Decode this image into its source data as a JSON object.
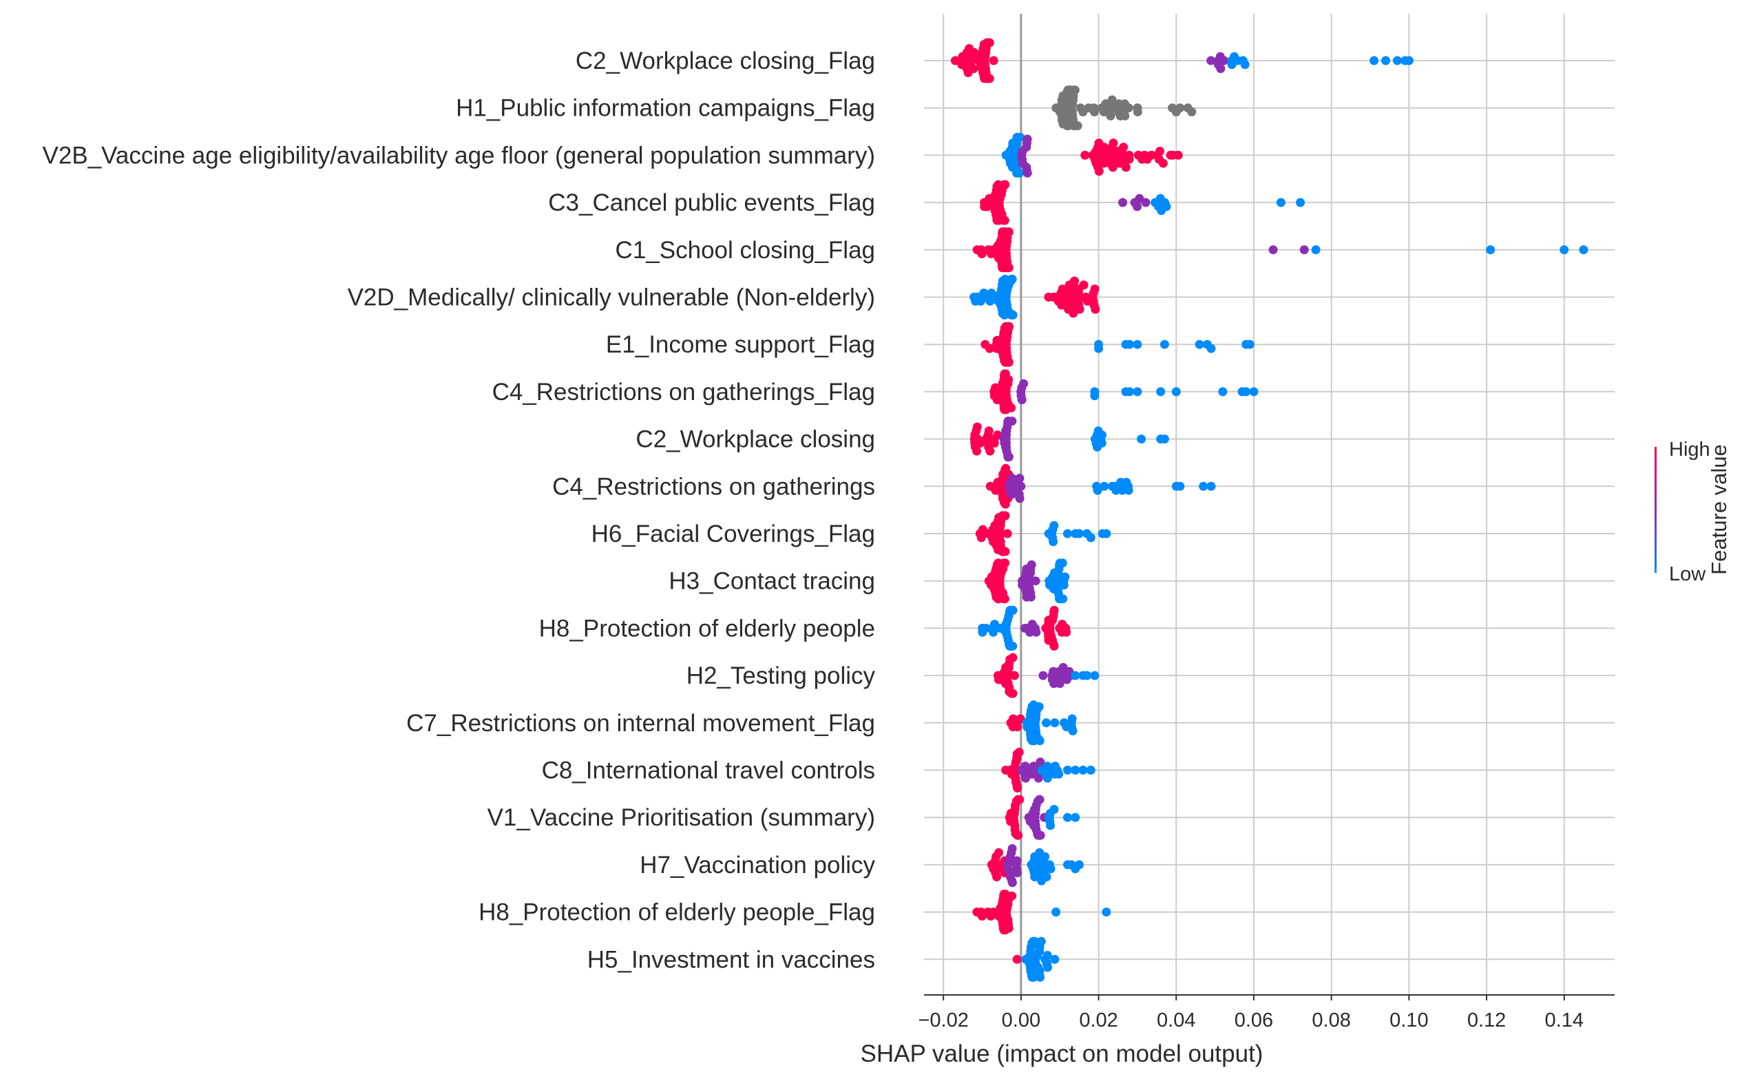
{
  "chart_data": {
    "type": "scatter",
    "subtype": "shap-beeswarm-summary",
    "title": "",
    "xlabel": "SHAP value (impact on model output)",
    "ylabel": "",
    "xlim": [
      -0.025,
      0.153
    ],
    "x_ticks": [
      -0.02,
      0.0,
      0.02,
      0.04,
      0.06,
      0.08,
      0.1,
      0.12,
      0.14
    ],
    "x_tick_labels": [
      "−0.02",
      "0.00",
      "0.02",
      "0.04",
      "0.06",
      "0.08",
      "0.10",
      "0.12",
      "0.14"
    ],
    "grid": true,
    "zero_line": true,
    "legend": {
      "type": "colorbar",
      "title": "Feature value",
      "high_label": "High",
      "low_label": "Low",
      "position": "right"
    },
    "colors": {
      "high": "#ff0052",
      "mid": "#8b2eb4",
      "low": "#008bfb",
      "missing": "#777777",
      "grid": "#cccccc",
      "zero_line": "#999999"
    },
    "features": [
      {
        "name": "C2_Workplace closing_Flag",
        "groups": [
          {
            "x0": -0.017,
            "x1": -0.007,
            "core": [
              -0.01,
              -0.008
            ],
            "n": 48,
            "color": "high"
          },
          {
            "x0": 0.048,
            "x1": 0.053,
            "n": 6,
            "color": "mid"
          },
          {
            "x0": 0.054,
            "x1": 0.058,
            "n": 6,
            "color": "low"
          },
          {
            "points": [
              0.091,
              0.094,
              0.097,
              0.099,
              0.1
            ],
            "color": "low"
          }
        ]
      },
      {
        "name": "H1_Public information campaigns_Flag",
        "groups": [
          {
            "x0": 0.008,
            "x1": 0.016,
            "core": [
              0.01,
              0.014
            ],
            "n": 40,
            "color": "missing"
          },
          {
            "x0": 0.017,
            "x1": 0.031,
            "n": 22,
            "color": "missing"
          },
          {
            "points": [
              0.039,
              0.04,
              0.041,
              0.043,
              0.044
            ],
            "color": "missing"
          }
        ]
      },
      {
        "name": "V2B_Vaccine age eligibility/availability age floor (general population summary)",
        "groups": [
          {
            "x0": -0.004,
            "x1": 0.0,
            "core": [
              -0.003,
              -0.001
            ],
            "n": 22,
            "color": "low"
          },
          {
            "x0": 0.0,
            "x1": 0.002,
            "n": 10,
            "color": "mid"
          },
          {
            "x0": 0.015,
            "x1": 0.041,
            "core": [
              0.019,
              0.026
            ],
            "n": 45,
            "color": "high"
          }
        ]
      },
      {
        "name": "C3_Cancel public events_Flag",
        "groups": [
          {
            "x0": -0.01,
            "x1": -0.003,
            "core": [
              -0.007,
              -0.004
            ],
            "n": 30,
            "color": "high"
          },
          {
            "x0": 0.026,
            "x1": 0.033,
            "n": 6,
            "color": "mid"
          },
          {
            "x0": 0.034,
            "x1": 0.038,
            "n": 7,
            "color": "low"
          },
          {
            "points": [
              0.067,
              0.072
            ],
            "color": "low"
          }
        ]
      },
      {
        "name": "C1_School closing_Flag",
        "groups": [
          {
            "x0": -0.013,
            "x1": -0.003,
            "core": [
              -0.006,
              -0.003
            ],
            "n": 40,
            "color": "high"
          },
          {
            "points": [
              0.065,
              0.073
            ],
            "color": "mid"
          },
          {
            "points": [
              0.076,
              0.121,
              0.14,
              0.145
            ],
            "color": "low"
          }
        ]
      },
      {
        "name": "V2D_Medically/ clinically vulnerable (Non-elderly)",
        "groups": [
          {
            "x0": -0.013,
            "x1": -0.001,
            "core": [
              -0.006,
              -0.002
            ],
            "n": 35,
            "color": "low"
          },
          {
            "x0": 0.007,
            "x1": 0.02,
            "core": [
              0.01,
              0.015
            ],
            "n": 38,
            "color": "high"
          }
        ]
      },
      {
        "name": "E1_Income support_Flag",
        "groups": [
          {
            "x0": -0.01,
            "x1": -0.003,
            "core": [
              -0.005,
              -0.003
            ],
            "n": 30,
            "color": "high"
          },
          {
            "points": [
              0.02,
              0.02,
              0.027,
              0.028,
              0.03,
              0.037,
              0.046,
              0.048,
              0.049,
              0.058,
              0.059
            ],
            "color": "low"
          }
        ]
      },
      {
        "name": "C4_Restrictions on gatherings_Flag",
        "groups": [
          {
            "x0": -0.007,
            "x1": -0.002,
            "core": [
              -0.005,
              -0.003
            ],
            "n": 28,
            "color": "high"
          },
          {
            "x0": -0.002,
            "x1": 0.001,
            "n": 5,
            "color": "mid"
          },
          {
            "points": [
              0.019,
              0.019,
              0.027,
              0.028,
              0.03,
              0.036,
              0.04,
              0.052,
              0.057,
              0.058,
              0.06
            ],
            "color": "low"
          }
        ]
      },
      {
        "name": "C2_Workplace closing",
        "groups": [
          {
            "x0": -0.012,
            "x1": -0.005,
            "n": 18,
            "color": "high"
          },
          {
            "x0": -0.005,
            "x1": -0.002,
            "core": [
              -0.004,
              -0.003
            ],
            "n": 22,
            "color": "mid"
          },
          {
            "x0": 0.019,
            "x1": 0.021,
            "n": 8,
            "color": "low"
          },
          {
            "points": [
              0.031,
              0.036,
              0.037
            ],
            "color": "low"
          }
        ]
      },
      {
        "name": "C4_Restrictions on gatherings",
        "groups": [
          {
            "x0": -0.008,
            "x1": -0.003,
            "core": [
              -0.005,
              -0.003
            ],
            "n": 22,
            "color": "high"
          },
          {
            "x0": -0.003,
            "x1": 0.0,
            "n": 12,
            "color": "mid"
          },
          {
            "x0": 0.019,
            "x1": 0.028,
            "n": 12,
            "color": "low"
          },
          {
            "points": [
              0.04,
              0.041,
              0.047,
              0.049
            ],
            "color": "low"
          }
        ]
      },
      {
        "name": "H6_Facial Coverings_Flag",
        "groups": [
          {
            "x0": -0.011,
            "x1": -0.003,
            "core": [
              -0.006,
              -0.004
            ],
            "n": 38,
            "color": "high"
          },
          {
            "x0": 0.007,
            "x1": 0.009,
            "n": 6,
            "color": "low"
          },
          {
            "points": [
              0.012,
              0.014,
              0.015,
              0.017,
              0.018,
              0.021,
              0.022
            ],
            "color": "low"
          }
        ]
      },
      {
        "name": "H3_Contact tracing",
        "groups": [
          {
            "x0": -0.01,
            "x1": -0.003,
            "core": [
              -0.007,
              -0.004
            ],
            "n": 32,
            "color": "high"
          },
          {
            "x0": 0.0,
            "x1": 0.004,
            "core": [
              0.001,
              0.003
            ],
            "n": 18,
            "color": "mid"
          },
          {
            "x0": 0.007,
            "x1": 0.012,
            "core": [
              0.009,
              0.011
            ],
            "n": 22,
            "color": "low"
          }
        ]
      },
      {
        "name": "H8_Protection of elderly people",
        "groups": [
          {
            "x0": -0.01,
            "x1": -0.001,
            "core": [
              -0.004,
              -0.002
            ],
            "n": 28,
            "color": "low"
          },
          {
            "x0": 0.001,
            "x1": 0.004,
            "n": 6,
            "color": "mid"
          },
          {
            "x0": 0.006,
            "x1": 0.012,
            "core": [
              0.007,
              0.009
            ],
            "n": 22,
            "color": "high"
          }
        ]
      },
      {
        "name": "H2_Testing policy",
        "groups": [
          {
            "x0": -0.006,
            "x1": -0.001,
            "core": [
              -0.004,
              -0.002
            ],
            "n": 20,
            "color": "high"
          },
          {
            "x0": 0.005,
            "x1": 0.013,
            "core": [
              0.008,
              0.01
            ],
            "n": 14,
            "color": "mid"
          },
          {
            "points": [
              0.014,
              0.016,
              0.017,
              0.019
            ],
            "color": "low"
          }
        ]
      },
      {
        "name": "C7_Restrictions on internal movement_Flag",
        "groups": [
          {
            "x0": -0.003,
            "x1": 0.0,
            "n": 6,
            "color": "high"
          },
          {
            "x0": 0.009,
            "x1": 0.001,
            "core": [
              0.002,
              0.005
            ],
            "n": 26,
            "color": "low"
          },
          {
            "x0": 0.011,
            "x1": 0.014,
            "n": 6,
            "color": "low"
          }
        ]
      },
      {
        "name": "C8_International travel controls",
        "groups": [
          {
            "x0": -0.004,
            "x1": 0.0,
            "core": [
              -0.002,
              -0.001
            ],
            "n": 14,
            "color": "high"
          },
          {
            "x0": 0.0,
            "x1": 0.005,
            "n": 12,
            "color": "mid"
          },
          {
            "x0": 0.005,
            "x1": 0.01,
            "n": 10,
            "color": "low"
          },
          {
            "points": [
              0.012,
              0.014,
              0.016,
              0.018
            ],
            "color": "low"
          }
        ]
      },
      {
        "name": "V1_Vaccine Prioritisation (summary)",
        "groups": [
          {
            "x0": -0.004,
            "x1": 0.0,
            "core": [
              -0.002,
              -0.001
            ],
            "n": 16,
            "color": "high"
          },
          {
            "x0": 0.002,
            "x1": 0.007,
            "core": [
              0.003,
              0.005
            ],
            "n": 20,
            "color": "mid"
          },
          {
            "x0": 0.007,
            "x1": 0.009,
            "n": 5,
            "color": "low"
          },
          {
            "points": [
              0.012,
              0.014
            ],
            "color": "low"
          }
        ]
      },
      {
        "name": "H7_Vaccination policy",
        "groups": [
          {
            "x0": -0.008,
            "x1": -0.004,
            "n": 12,
            "color": "high"
          },
          {
            "x0": -0.004,
            "x1": 0.0,
            "core": [
              -0.003,
              -0.001
            ],
            "n": 14,
            "color": "mid"
          },
          {
            "x0": 0.002,
            "x1": 0.008,
            "core": [
              0.003,
              0.006
            ],
            "n": 22,
            "color": "low"
          },
          {
            "points": [
              0.012,
              0.013,
              0.014,
              0.015
            ],
            "color": "low"
          }
        ]
      },
      {
        "name": "H8_Protection of elderly people_Flag",
        "groups": [
          {
            "x0": -0.012,
            "x1": -0.002,
            "core": [
              -0.005,
              -0.003
            ],
            "n": 32,
            "color": "high"
          },
          {
            "points": [
              0.009,
              0.022
            ],
            "color": "low"
          }
        ]
      },
      {
        "name": "H5_Investment in vaccines",
        "groups": [
          {
            "points": [
              -0.001
            ],
            "color": "high"
          },
          {
            "x0": 0.001,
            "x1": 0.009,
            "core": [
              0.002,
              0.005
            ],
            "n": 32,
            "color": "low"
          }
        ]
      }
    ]
  }
}
